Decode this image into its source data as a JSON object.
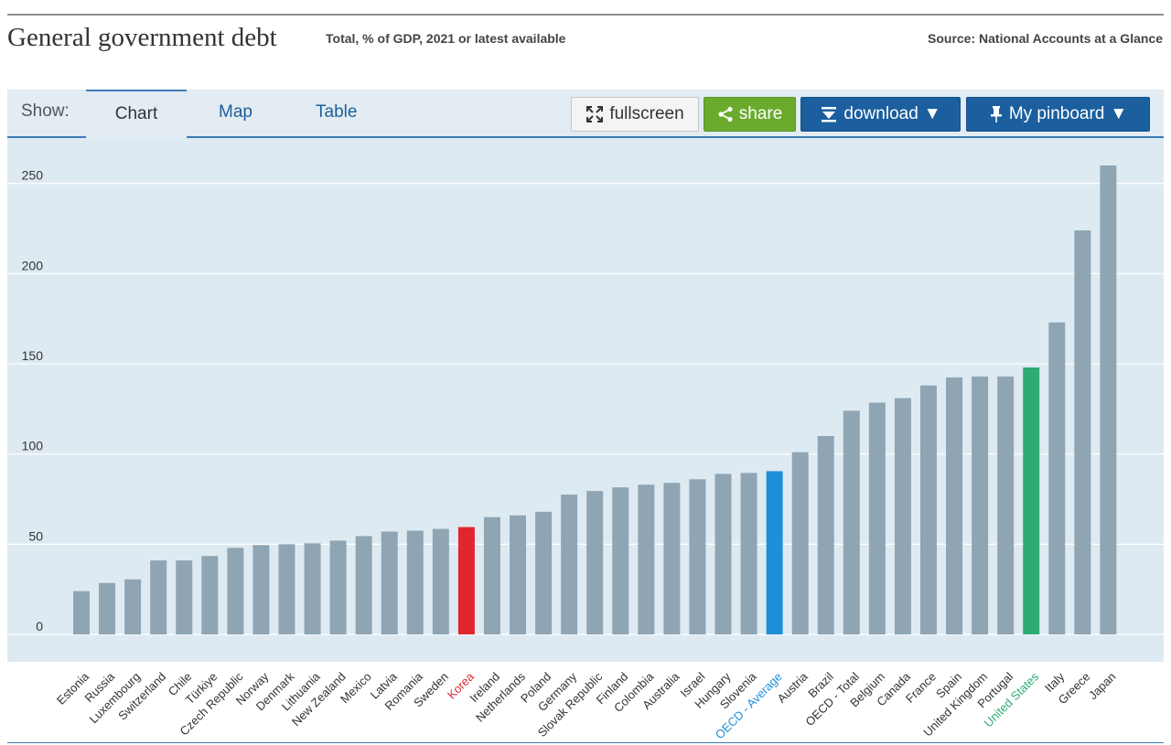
{
  "header": {
    "title": "General government debt",
    "subtitle": "Total, % of GDP, 2021 or latest available",
    "source": "Source: National Accounts at a Glance"
  },
  "toolbar": {
    "show_label": "Show:",
    "tabs": [
      {
        "label": "Chart",
        "active": true
      },
      {
        "label": "Map",
        "active": false
      },
      {
        "label": "Table",
        "active": false
      }
    ],
    "fullscreen_label": "fullscreen",
    "share_label": "share",
    "download_label": "download",
    "pinboard_label": "My pinboard",
    "icons": {
      "fullscreen": "expand-arrows-icon",
      "share": "share-icon",
      "download": "download-icon",
      "pinboard": "pushpin-icon",
      "dropdown": "caret-down-icon"
    },
    "colors": {
      "share": "#6aab2e",
      "download": "#1b5f9e",
      "pinboard": "#1b5f9e"
    }
  },
  "chart_data": {
    "type": "bar",
    "title": "",
    "xlabel": "",
    "ylabel": "",
    "ylim": [
      0,
      260
    ],
    "yticks": [
      0,
      50,
      100,
      150,
      200,
      250
    ],
    "grid": true,
    "categories": [
      "Estonia",
      "Russia",
      "Luxembourg",
      "Switzerland",
      "Chile",
      "Türkiye",
      "Czech Republic",
      "Norway",
      "Denmark",
      "Lithuania",
      "New Zealand",
      "Mexico",
      "Latvia",
      "Romania",
      "Sweden",
      "Korea",
      "Ireland",
      "Netherlands",
      "Poland",
      "Germany",
      "Slovak Republic",
      "Finland",
      "Colombia",
      "Australia",
      "Israel",
      "Hungary",
      "Slovenia",
      "OECD - Average",
      "Austria",
      "Brazil",
      "OECD - Total",
      "Belgium",
      "Canada",
      "France",
      "Spain",
      "United Kingdom",
      "Portugal",
      "United States",
      "Italy",
      "Greece",
      "Japan"
    ],
    "values": [
      24,
      28.5,
      30.5,
      41,
      41,
      43.5,
      48,
      49.5,
      50,
      50.5,
      52,
      54.5,
      57,
      57.5,
      58.5,
      59.5,
      65,
      66,
      68,
      77.5,
      79.5,
      81.5,
      83,
      84,
      86,
      89,
      89.5,
      90.5,
      101,
      110,
      124,
      128.5,
      131,
      138,
      142.5,
      143,
      143,
      148,
      173,
      224,
      260
    ],
    "colors": {
      "default": "#8fa5b3",
      "Korea": "#e0262f",
      "OECD - Average": "#1e8fd8",
      "United States": "#2eaa72"
    },
    "label_colors": {
      "default": "#333333",
      "Korea": "#e0262f",
      "OECD - Average": "#1e8fd8",
      "United States": "#2eaa72"
    }
  }
}
